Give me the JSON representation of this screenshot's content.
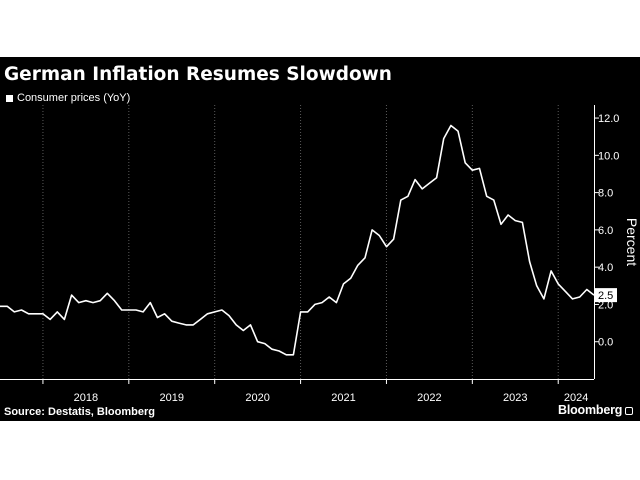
{
  "header": {
    "title": "German Inflation Resumes Slowdown"
  },
  "legend": {
    "label": "Consumer prices (YoY)"
  },
  "footer": {
    "source": "Source: Destatis, Bloomberg",
    "brand": "Bloomberg"
  },
  "colors": {
    "background": "#000000",
    "line": "#ffffff",
    "grid": "#5a5a5a"
  },
  "chart_data": {
    "type": "line",
    "title": "German Inflation Resumes Slowdown",
    "xlabel": "",
    "ylabel": "Percent",
    "y_axis_side": "right",
    "grid": "vertical dotted",
    "legend_position": "top-left",
    "ylim": [
      -2,
      12.7
    ],
    "yticks": [
      0.0,
      2.0,
      4.0,
      6.0,
      8.0,
      10.0,
      12.0
    ],
    "ytick_labels": [
      "0.0",
      "2.0",
      "4.0",
      "6.0",
      "8.0",
      "10.0",
      "12.0"
    ],
    "xlim": [
      "2017-07",
      "2024-06"
    ],
    "year_labels": [
      "2018",
      "2019",
      "2020",
      "2021",
      "2022",
      "2023",
      "2024"
    ],
    "last_value_label": "2.5",
    "series": [
      {
        "name": "Consumer prices (YoY)",
        "points": [
          [
            "2017-07",
            1.9
          ],
          [
            "2017-08",
            1.9
          ],
          [
            "2017-09",
            1.6
          ],
          [
            "2017-10",
            1.7
          ],
          [
            "2017-11",
            1.5
          ],
          [
            "2017-12",
            1.5
          ],
          [
            "2018-01",
            1.5
          ],
          [
            "2018-02",
            1.2
          ],
          [
            "2018-03",
            1.6
          ],
          [
            "2018-04",
            1.2
          ],
          [
            "2018-05",
            2.5
          ],
          [
            "2018-06",
            2.1
          ],
          [
            "2018-07",
            2.2
          ],
          [
            "2018-08",
            2.1
          ],
          [
            "2018-09",
            2.2
          ],
          [
            "2018-10",
            2.6
          ],
          [
            "2018-11",
            2.2
          ],
          [
            "2018-12",
            1.7
          ],
          [
            "2019-01",
            1.7
          ],
          [
            "2019-02",
            1.7
          ],
          [
            "2019-03",
            1.6
          ],
          [
            "2019-04",
            2.1
          ],
          [
            "2019-05",
            1.3
          ],
          [
            "2019-06",
            1.5
          ],
          [
            "2019-07",
            1.1
          ],
          [
            "2019-08",
            1.0
          ],
          [
            "2019-09",
            0.9
          ],
          [
            "2019-10",
            0.9
          ],
          [
            "2019-11",
            1.2
          ],
          [
            "2019-12",
            1.5
          ],
          [
            "2020-01",
            1.6
          ],
          [
            "2020-02",
            1.7
          ],
          [
            "2020-03",
            1.4
          ],
          [
            "2020-04",
            0.9
          ],
          [
            "2020-05",
            0.6
          ],
          [
            "2020-06",
            0.9
          ],
          [
            "2020-07",
            0.0
          ],
          [
            "2020-08",
            -0.1
          ],
          [
            "2020-09",
            -0.4
          ],
          [
            "2020-10",
            -0.5
          ],
          [
            "2020-11",
            -0.7
          ],
          [
            "2020-12",
            -0.7
          ],
          [
            "2021-01",
            1.6
          ],
          [
            "2021-02",
            1.6
          ],
          [
            "2021-03",
            2.0
          ],
          [
            "2021-04",
            2.1
          ],
          [
            "2021-05",
            2.4
          ],
          [
            "2021-06",
            2.1
          ],
          [
            "2021-07",
            3.1
          ],
          [
            "2021-08",
            3.4
          ],
          [
            "2021-09",
            4.1
          ],
          [
            "2021-10",
            4.5
          ],
          [
            "2021-11",
            6.0
          ],
          [
            "2021-12",
            5.7
          ],
          [
            "2022-01",
            5.1
          ],
          [
            "2022-02",
            5.5
          ],
          [
            "2022-03",
            7.6
          ],
          [
            "2022-04",
            7.8
          ],
          [
            "2022-05",
            8.7
          ],
          [
            "2022-06",
            8.2
          ],
          [
            "2022-07",
            8.5
          ],
          [
            "2022-08",
            8.8
          ],
          [
            "2022-09",
            10.9
          ],
          [
            "2022-10",
            11.6
          ],
          [
            "2022-11",
            11.3
          ],
          [
            "2022-12",
            9.6
          ],
          [
            "2023-01",
            9.2
          ],
          [
            "2023-02",
            9.3
          ],
          [
            "2023-03",
            7.8
          ],
          [
            "2023-04",
            7.6
          ],
          [
            "2023-05",
            6.3
          ],
          [
            "2023-06",
            6.8
          ],
          [
            "2023-07",
            6.5
          ],
          [
            "2023-08",
            6.4
          ],
          [
            "2023-09",
            4.3
          ],
          [
            "2023-10",
            3.0
          ],
          [
            "2023-11",
            2.3
          ],
          [
            "2023-12",
            3.8
          ],
          [
            "2024-01",
            3.1
          ],
          [
            "2024-02",
            2.7
          ],
          [
            "2024-03",
            2.3
          ],
          [
            "2024-04",
            2.4
          ],
          [
            "2024-05",
            2.8
          ],
          [
            "2024-06",
            2.5
          ]
        ]
      }
    ]
  }
}
